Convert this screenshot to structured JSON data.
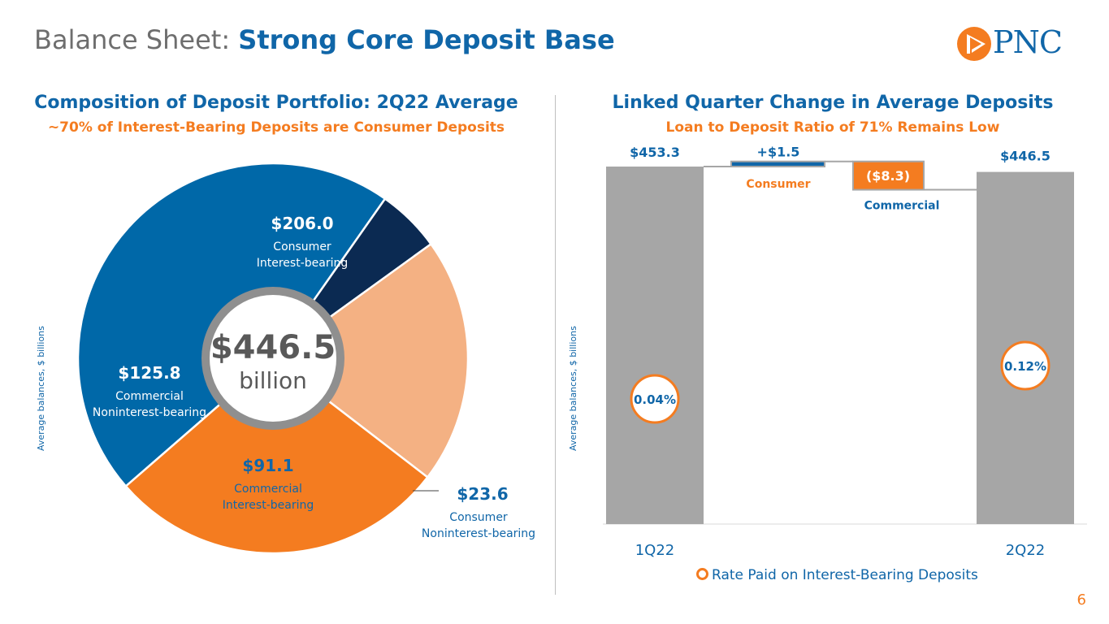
{
  "header": {
    "title_prefix": "Balance Sheet: ",
    "title_main": "Strong Core Deposit Base",
    "logo_text": "PNC",
    "page_number": "6"
  },
  "left_panel": {
    "title": "Composition of Deposit Portfolio: 2Q22 Average",
    "subtitle": "~70% of Interest-Bearing Deposits are Consumer Deposits",
    "y_axis_label": "Average balances, $ billions",
    "center_value": "$446.5",
    "center_unit": "billion"
  },
  "right_panel": {
    "title": "Linked Quarter Change in Average Deposits",
    "subtitle": "Loan to Deposit Ratio of 71% Remains Low",
    "y_axis_label": "Average balances, $ billions",
    "legend_label": "Rate Paid on Interest-Bearing Deposits"
  },
  "colors": {
    "blue": "#0068a8",
    "orange": "#f47c20",
    "peach": "#f4b183",
    "navy": "#0b2a52",
    "gray": "#a6a6a6",
    "text_blue": "#1066a8"
  },
  "chart_data": [
    {
      "type": "pie",
      "slices": [
        {
          "value": 206.0,
          "value_label": "$206.0",
          "name": "Consumer",
          "name2": "Interest-bearing",
          "color": "#0068a8"
        },
        {
          "value": 23.6,
          "value_label": "$23.6",
          "name": "Consumer",
          "name2": "Noninterest-bearing",
          "color": "#0b2a52"
        },
        {
          "value": 91.1,
          "value_label": "$91.1",
          "name": "Commercial",
          "name2": "Interest-bearing",
          "color": "#f4b183"
        },
        {
          "value": 125.8,
          "value_label": "$125.8",
          "name": "Commercial",
          "name2": "Noninterest-bearing",
          "color": "#f47c20"
        }
      ],
      "total": 446.5
    },
    {
      "type": "bar",
      "subtype": "waterfall",
      "steps": [
        {
          "category": "1Q22",
          "kind": "total",
          "value": 453.3,
          "label": "$453.3",
          "rate_label": "0.04%"
        },
        {
          "category": "Consumer",
          "kind": "delta",
          "value": 1.5,
          "label": "+$1.5"
        },
        {
          "category": "Commercial",
          "kind": "delta",
          "value": -8.3,
          "label": "($8.3)"
        },
        {
          "category": "2Q22",
          "kind": "total",
          "value": 446.5,
          "label": "$446.5",
          "rate_label": "0.12%"
        }
      ]
    }
  ]
}
